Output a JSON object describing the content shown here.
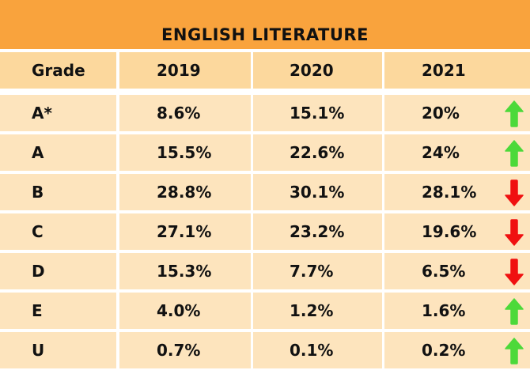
{
  "title": "ENGLISH LITERATURE",
  "colors": {
    "header": "#f9a33d",
    "up": "#4cd93a",
    "down": "#f01010"
  },
  "chart_data": {
    "type": "table",
    "title": "ENGLISH LITERATURE",
    "columns": [
      "Grade",
      "2019",
      "2020",
      "2021"
    ],
    "rows": [
      {
        "grade": "A*",
        "y2019": "8.6%",
        "y2020": "15.1%",
        "y2021": "20%",
        "trend": "up"
      },
      {
        "grade": "A",
        "y2019": "15.5%",
        "y2020": "22.6%",
        "y2021": "24%",
        "trend": "up"
      },
      {
        "grade": "B",
        "y2019": "28.8%",
        "y2020": "30.1%",
        "y2021": "28.1%",
        "trend": "down"
      },
      {
        "grade": "C",
        "y2019": "27.1%",
        "y2020": "23.2%",
        "y2021": "19.6%",
        "trend": "down"
      },
      {
        "grade": "D",
        "y2019": "15.3%",
        "y2020": "7.7%",
        "y2021": "6.5%",
        "trend": "down"
      },
      {
        "grade": "E",
        "y2019": "4.0%",
        "y2020": "1.2%",
        "y2021": "1.6%",
        "trend": "up"
      },
      {
        "grade": "U",
        "y2019": "0.7%",
        "y2020": "0.1%",
        "y2021": "0.2%",
        "trend": "up"
      }
    ]
  }
}
